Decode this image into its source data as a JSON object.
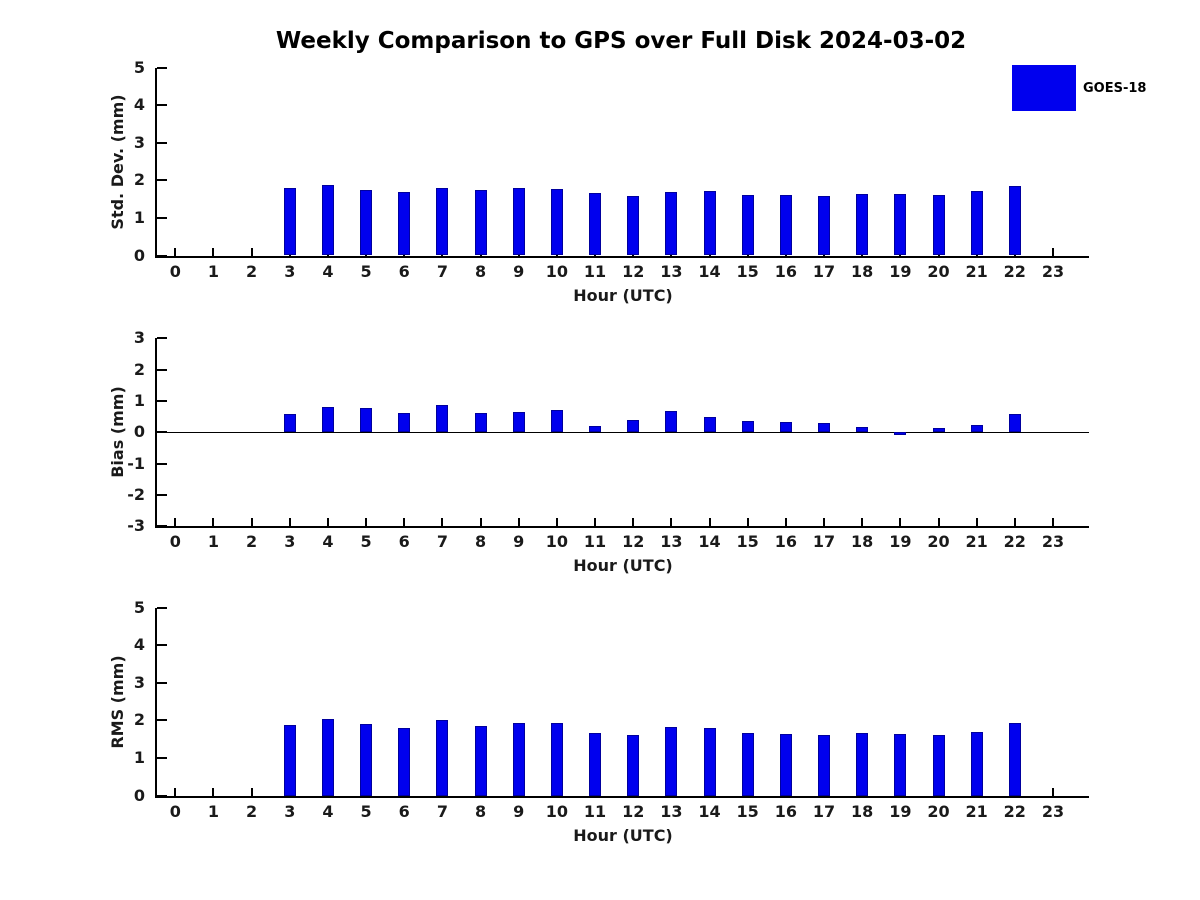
{
  "title": "Weekly Comparison to GPS over Full Disk 2024-03-02",
  "legend": {
    "label": "GOES-18",
    "swatch_color": "#0000EE",
    "position": "upper-right-outside"
  },
  "colors": {
    "bar": "#0000EE",
    "axis": "#000000",
    "background": "#FFFFFF",
    "text": "#1A1A1A"
  },
  "xlabel": "Hour (UTC)",
  "hours": [
    "0",
    "1",
    "2",
    "3",
    "4",
    "5",
    "6",
    "7",
    "8",
    "9",
    "10",
    "11",
    "12",
    "13",
    "14",
    "15",
    "16",
    "17",
    "18",
    "19",
    "20",
    "21",
    "22",
    "23"
  ],
  "chart_data": [
    {
      "type": "bar",
      "title": "Weekly Comparison to GPS over Full Disk 2024-03-02",
      "ylabel": "Std. Dev. (mm)",
      "xlabel": "Hour (UTC)",
      "ylim": [
        0,
        5
      ],
      "yticks": [
        0,
        1,
        2,
        3,
        4,
        5
      ],
      "grid": false,
      "categories": [
        0,
        1,
        2,
        3,
        4,
        5,
        6,
        7,
        8,
        9,
        10,
        11,
        12,
        13,
        14,
        15,
        16,
        17,
        18,
        19,
        20,
        21,
        22,
        23
      ],
      "series": [
        {
          "name": "GOES-18",
          "values": [
            null,
            null,
            null,
            1.79,
            1.87,
            1.74,
            1.69,
            1.79,
            1.74,
            1.79,
            1.78,
            1.65,
            1.59,
            1.69,
            1.71,
            1.61,
            1.61,
            1.57,
            1.63,
            1.63,
            1.61,
            1.71,
            1.86,
            null
          ]
        }
      ]
    },
    {
      "type": "bar",
      "ylabel": "Bias (mm)",
      "xlabel": "Hour (UTC)",
      "ylim": [
        -3,
        3
      ],
      "yticks": [
        -3,
        -2,
        -1,
        0,
        1,
        2,
        3
      ],
      "zero_line": true,
      "grid": false,
      "categories": [
        0,
        1,
        2,
        3,
        4,
        5,
        6,
        7,
        8,
        9,
        10,
        11,
        12,
        13,
        14,
        15,
        16,
        17,
        18,
        19,
        20,
        21,
        22,
        23
      ],
      "series": [
        {
          "name": "GOES-18",
          "values": [
            null,
            null,
            null,
            0.57,
            0.81,
            0.77,
            0.63,
            0.86,
            0.63,
            0.66,
            0.72,
            0.21,
            0.4,
            0.68,
            0.5,
            0.37,
            0.33,
            0.31,
            0.18,
            -0.08,
            0.13,
            0.22,
            0.57,
            null
          ]
        }
      ]
    },
    {
      "type": "bar",
      "ylabel": "RMS (mm)",
      "xlabel": "Hour (UTC)",
      "ylim": [
        0,
        5
      ],
      "yticks": [
        0,
        1,
        2,
        3,
        4,
        5
      ],
      "grid": false,
      "categories": [
        0,
        1,
        2,
        3,
        4,
        5,
        6,
        7,
        8,
        9,
        10,
        11,
        12,
        13,
        14,
        15,
        16,
        17,
        18,
        19,
        20,
        21,
        22,
        23
      ],
      "series": [
        {
          "name": "GOES-18",
          "values": [
            null,
            null,
            null,
            1.87,
            2.04,
            1.91,
            1.8,
            2.0,
            1.86,
            1.92,
            1.93,
            1.67,
            1.62,
            1.82,
            1.79,
            1.66,
            1.65,
            1.62,
            1.66,
            1.63,
            1.62,
            1.7,
            1.94,
            null
          ]
        }
      ]
    }
  ]
}
